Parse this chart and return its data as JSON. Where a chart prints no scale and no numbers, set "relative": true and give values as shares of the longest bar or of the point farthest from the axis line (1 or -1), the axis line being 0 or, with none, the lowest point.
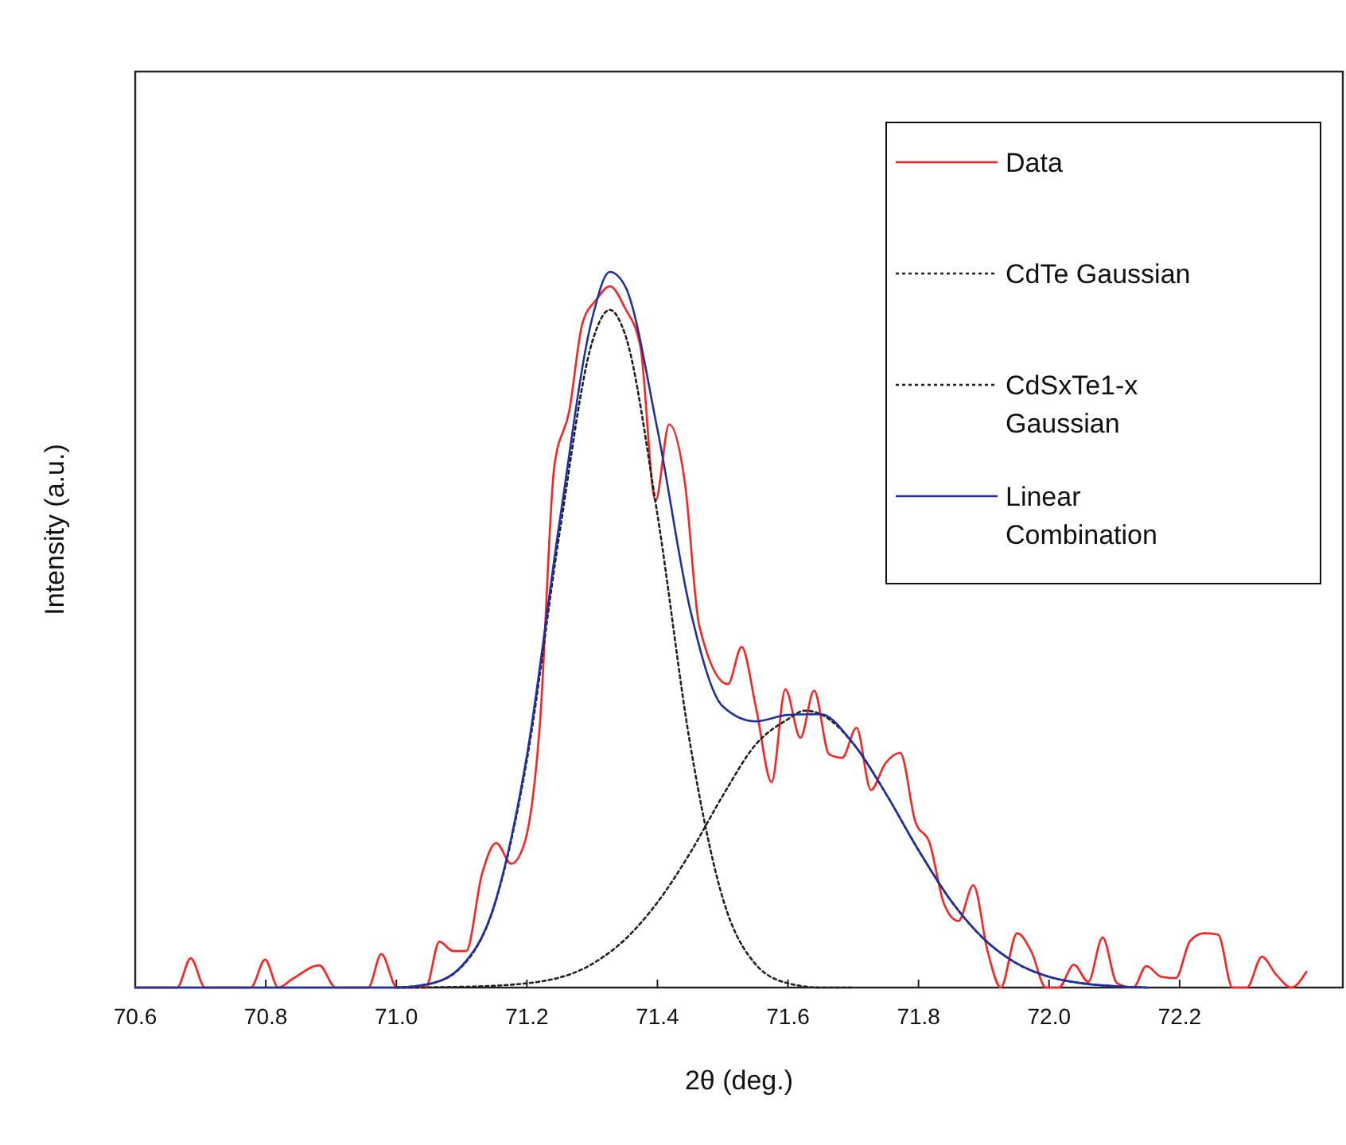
{
  "chart_data": {
    "type": "line",
    "xlabel": "2θ (deg.)",
    "ylabel": "Intensity (a.u.)",
    "relative": true,
    "xlim": [
      70.6,
      72.45
    ],
    "xticks": [
      {
        "value": 70.6,
        "label": "70.6"
      },
      {
        "value": 70.8,
        "label": "70.8"
      },
      {
        "value": 71.0,
        "label": "71.0"
      },
      {
        "value": 71.2,
        "label": "71.2"
      },
      {
        "value": 71.4,
        "label": "71.4"
      },
      {
        "value": 71.6,
        "label": "71.6"
      },
      {
        "value": 71.8,
        "label": "71.8"
      },
      {
        "value": 72.0,
        "label": "72.0"
      },
      {
        "value": 72.2,
        "label": "72.2"
      }
    ],
    "legend": "top right",
    "series": [
      {
        "name": "Data",
        "color": "#ff2020",
        "line_style": "solid",
        "x": [
          70.6,
          70.664,
          70.685,
          70.707,
          70.777,
          70.799,
          70.819,
          70.841,
          70.882,
          70.907,
          70.957,
          70.977,
          71.001,
          71.045,
          71.066,
          71.087,
          71.107,
          71.131,
          71.153,
          71.176,
          71.196,
          71.22,
          71.242,
          71.265,
          71.285,
          71.307,
          71.327,
          71.35,
          71.374,
          71.397,
          71.418,
          71.442,
          71.464,
          71.508,
          71.529,
          71.551,
          71.575,
          71.596,
          71.619,
          71.64,
          71.663,
          71.683,
          71.705,
          71.727,
          71.749,
          71.772,
          71.795,
          71.817,
          71.839,
          71.861,
          71.884,
          71.906,
          71.926,
          71.951,
          71.973,
          71.995,
          72.015,
          72.038,
          72.06,
          72.082,
          72.104,
          72.129,
          72.149,
          72.172,
          72.194,
          72.216,
          72.238,
          72.259,
          72.281,
          72.303,
          72.326,
          72.348,
          72.371,
          72.394
        ],
        "values": [
          0,
          0,
          0.041,
          0,
          0,
          0.039,
          0,
          0.012,
          0.031,
          0,
          0,
          0.047,
          0,
          0,
          0.064,
          0.051,
          0.051,
          0.158,
          0.202,
          0.173,
          0.201,
          0.369,
          0.728,
          0.806,
          0.928,
          0.962,
          0.98,
          0.95,
          0.895,
          0.68,
          0.787,
          0.706,
          0.506,
          0.424,
          0.476,
          0.391,
          0.287,
          0.417,
          0.349,
          0.415,
          0.326,
          0.321,
          0.363,
          0.276,
          0.313,
          0.328,
          0.232,
          0.202,
          0.117,
          0.093,
          0.143,
          0.05,
          0,
          0.076,
          0.05,
          0,
          0,
          0.032,
          0.008,
          0.07,
          0.006,
          0,
          0.03,
          0.015,
          0.013,
          0.065,
          0.076,
          0.074,
          0,
          0,
          0.043,
          0.018,
          0,
          0.022
        ]
      },
      {
        "name": "CdTe Gaussian",
        "color": "#202020",
        "line_style": "dotted",
        "x": [
          71.0,
          71.05,
          71.1,
          71.15,
          71.2,
          71.25,
          71.3,
          71.327,
          71.35,
          71.4,
          71.45,
          71.5,
          71.55,
          71.6,
          71.65,
          71.7
        ],
        "values": [
          0,
          0.005,
          0.029,
          0.114,
          0.318,
          0.635,
          0.902,
          0.947,
          0.914,
          0.661,
          0.341,
          0.125,
          0.033,
          0.006,
          0,
          0
        ]
      },
      {
        "name": "CdSxTe1-x Gaussian",
        "color": "#202020",
        "line_style": "dotted",
        "x": [
          71.0,
          71.1,
          71.2,
          71.3,
          71.35,
          71.4,
          71.45,
          71.5,
          71.55,
          71.6,
          71.626,
          71.65,
          71.7,
          71.75,
          71.8,
          71.85,
          71.9,
          71.95,
          72.0,
          72.05,
          72.1,
          72.15
        ],
        "values": [
          0,
          0.001,
          0.006,
          0.033,
          0.067,
          0.119,
          0.188,
          0.268,
          0.339,
          0.375,
          0.387,
          0.382,
          0.341,
          0.271,
          0.192,
          0.121,
          0.068,
          0.034,
          0.015,
          0.006,
          0.002,
          0
        ]
      },
      {
        "name": "Linear Combination",
        "color": "#2030a0",
        "line_style": "solid",
        "x": [
          70.6,
          71.0,
          71.05,
          71.1,
          71.15,
          71.2,
          71.25,
          71.3,
          71.327,
          71.35,
          71.4,
          71.45,
          71.5,
          71.55,
          71.6,
          71.65,
          71.7,
          71.75,
          71.8,
          71.85,
          71.9,
          71.95,
          72.0,
          72.05,
          72.1,
          72.15
        ],
        "values": [
          0,
          0,
          0.005,
          0.03,
          0.115,
          0.324,
          0.65,
          0.935,
          1,
          0.981,
          0.78,
          0.529,
          0.393,
          0.372,
          0.381,
          0.382,
          0.341,
          0.271,
          0.192,
          0.121,
          0.068,
          0.034,
          0.015,
          0.006,
          0.002,
          0
        ]
      }
    ]
  }
}
